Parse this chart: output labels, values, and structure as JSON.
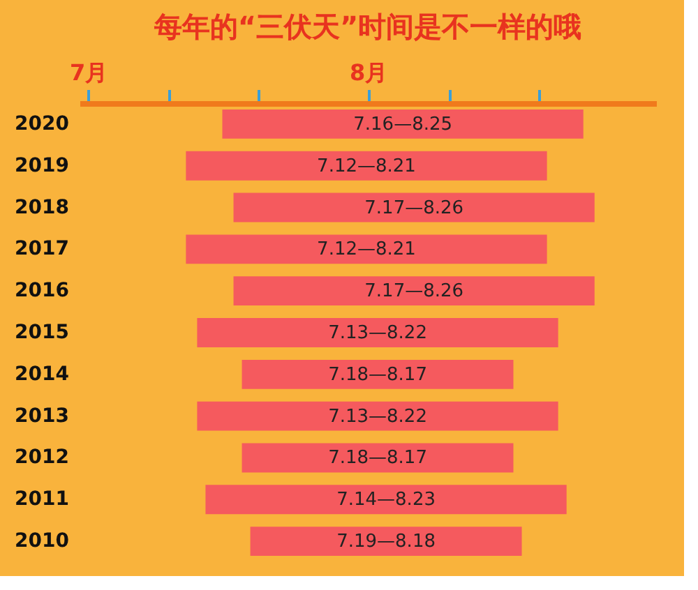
{
  "chart_data": {
    "type": "bar",
    "orientation": "horizontal",
    "title": "每年的“三伏天”时间是不一样的哦",
    "categories": [
      "2020",
      "2019",
      "2018",
      "2017",
      "2016",
      "2015",
      "2014",
      "2013",
      "2012",
      "2011",
      "2010"
    ],
    "base": [
      7.48,
      7.35,
      7.52,
      7.35,
      7.52,
      7.39,
      7.55,
      7.39,
      7.55,
      7.42,
      7.58
    ],
    "values": [
      1.29,
      1.29,
      1.29,
      1.29,
      1.29,
      1.29,
      0.97,
      1.29,
      0.97,
      1.29,
      0.97
    ],
    "annotations": [
      "7.16—8.25",
      "7.12—8.21",
      "7.17—8.26",
      "7.12—8.21",
      "7.17—8.26",
      "7.13—8.22",
      "7.18—8.17",
      "7.13—8.22",
      "7.18—8.17",
      "7.14—8.23",
      "7.19—8.18"
    ],
    "color": "#f55a5e",
    "xlim": [
      6.97,
      9.03
    ],
    "xticks": [
      {
        "value": 7,
        "label": "7月"
      },
      {
        "value": 7.29,
        "label": null
      },
      {
        "value": 7.61,
        "label": null
      },
      {
        "value": 8,
        "label": "8月"
      },
      {
        "value": 8.29,
        "label": null
      },
      {
        "value": 8.61,
        "label": null
      }
    ],
    "grid": false
  }
}
